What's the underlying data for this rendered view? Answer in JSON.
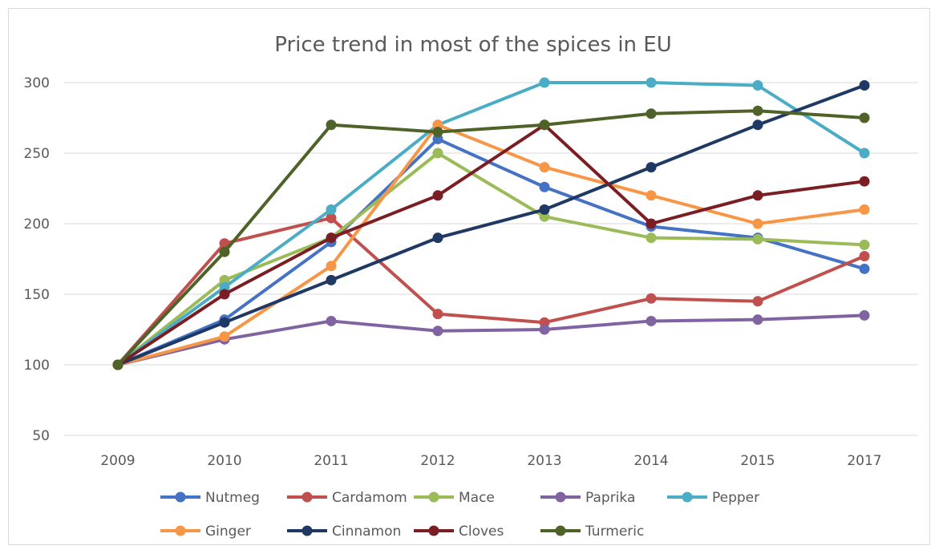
{
  "chart_data": {
    "type": "line",
    "title": "Price trend in most of the spices in EU",
    "xlabel": "",
    "ylabel": "",
    "categories": [
      "2009",
      "2010",
      "2011",
      "2012",
      "2013",
      "2014",
      "2015",
      "2017"
    ],
    "ylim": [
      50,
      300
    ],
    "yticks": [
      50,
      100,
      150,
      200,
      250,
      300
    ],
    "grid": true,
    "legend": "bottom",
    "series": [
      {
        "name": "Nutmeg",
        "color": "#4472c4",
        "values": [
          100,
          132,
          187,
          260,
          226,
          198,
          190,
          168
        ]
      },
      {
        "name": "Cardamom",
        "color": "#c0504d",
        "values": [
          100,
          186,
          204,
          136,
          130,
          147,
          145,
          177
        ]
      },
      {
        "name": "Mace",
        "color": "#9bbb59",
        "values": [
          100,
          160,
          190,
          250,
          205,
          190,
          189,
          185
        ]
      },
      {
        "name": "Paprika",
        "color": "#8064a2",
        "values": [
          100,
          118,
          131,
          124,
          125,
          131,
          132,
          135
        ]
      },
      {
        "name": "Pepper",
        "color": "#4bacc6",
        "values": [
          100,
          155,
          210,
          270,
          300,
          300,
          298,
          250
        ]
      },
      {
        "name": "Ginger",
        "color": "#f79646",
        "values": [
          100,
          120,
          170,
          270,
          240,
          220,
          200,
          210
        ]
      },
      {
        "name": "Cinnamon",
        "color": "#1f3864",
        "values": [
          100,
          130,
          160,
          190,
          210,
          240,
          270,
          298
        ]
      },
      {
        "name": "Cloves",
        "color": "#7b1e24",
        "values": [
          100,
          150,
          190,
          220,
          270,
          200,
          220,
          230
        ]
      },
      {
        "name": "Turmeric",
        "color": "#4f6228",
        "values": [
          100,
          180,
          270,
          265,
          270,
          278,
          280,
          275
        ]
      }
    ]
  }
}
